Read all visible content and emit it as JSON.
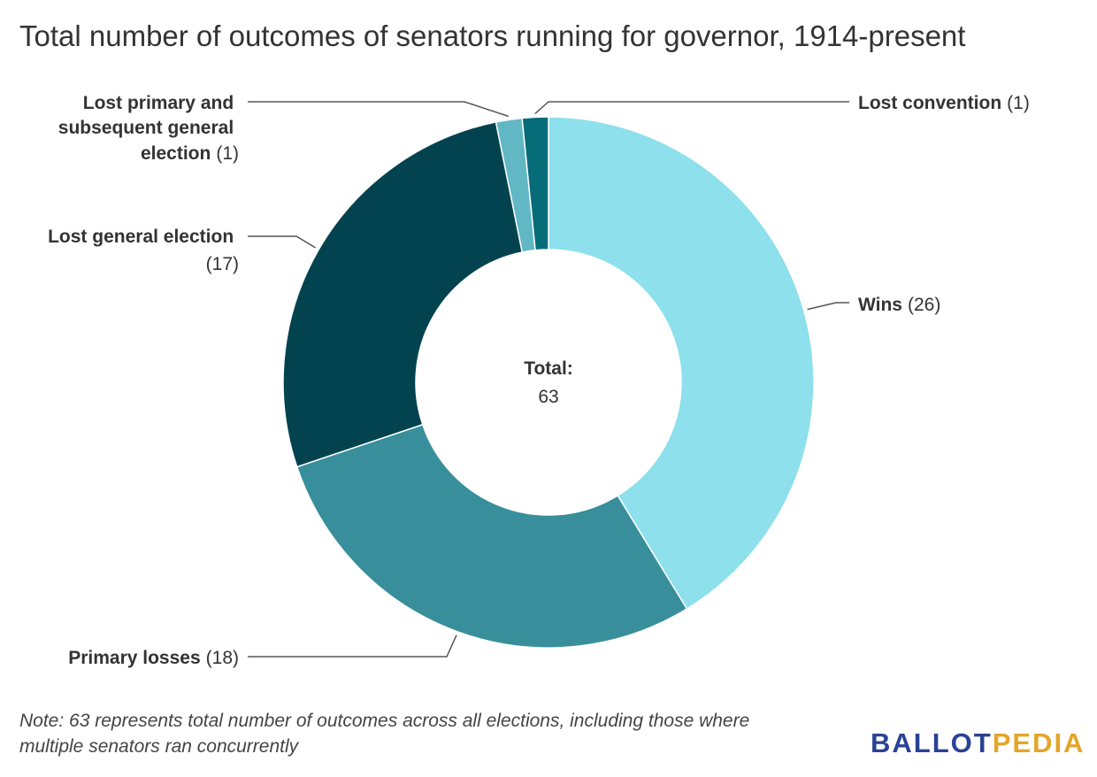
{
  "title": "Total number of outcomes of senators running for governor, 1914-present",
  "chart_data": {
    "type": "pie",
    "donut": true,
    "title": "Total number of outcomes of senators running for governor, 1914-present",
    "center_label": "Total:",
    "center_value": "63",
    "total": 63,
    "slices": [
      {
        "label": "Wins",
        "value": 26,
        "display": "(26)",
        "color": "#8de0ec"
      },
      {
        "label": "Primary losses",
        "value": 18,
        "display": "(18)",
        "color": "#388f9b"
      },
      {
        "label": "Lost general election",
        "value": 17,
        "display": "(17)",
        "color": "#02434f"
      },
      {
        "label": "Lost primary and subsequent general election",
        "value": 1,
        "display": "(1)",
        "color": "#62b7c5"
      },
      {
        "label": "Lost convention",
        "value": 1,
        "display": "(1)",
        "color": "#056c78"
      }
    ]
  },
  "note": "Note: 63 represents total number of outcomes across all elections, including those where multiple senators ran concurrently",
  "logo": {
    "part1": "BALLOT",
    "part2": "PEDIA",
    "color1": "#2a4295",
    "color2": "#e4a52a"
  }
}
